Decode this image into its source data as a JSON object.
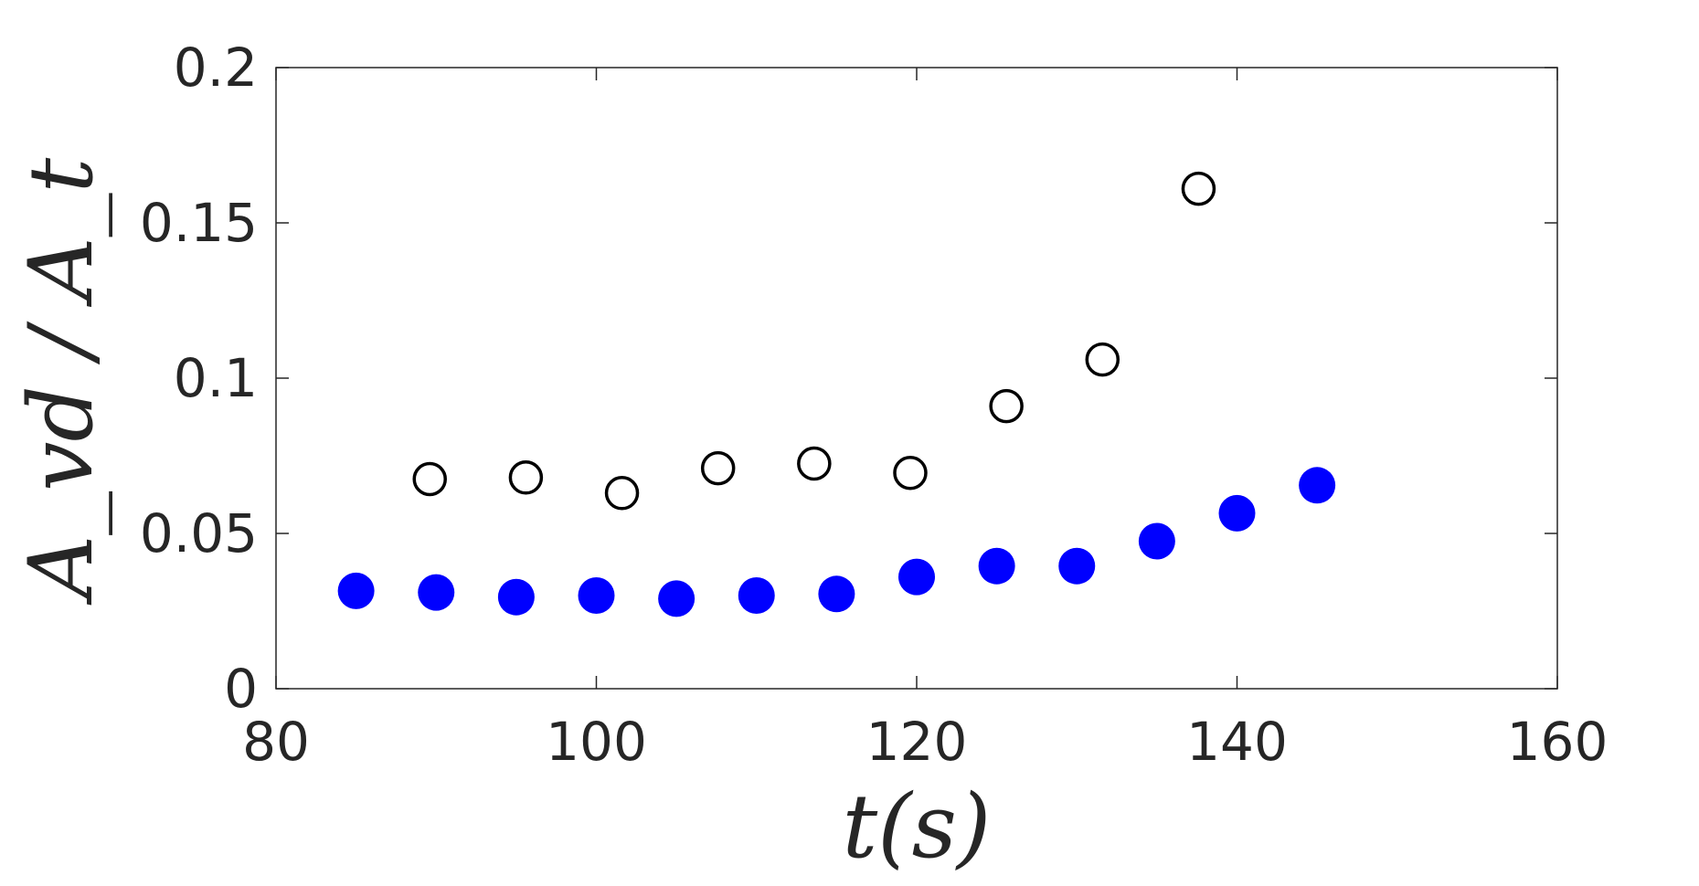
{
  "chart_data": {
    "type": "scatter",
    "title": "",
    "xlabel": "t(s)",
    "ylabel": "A_vd / A_t",
    "xlim": [
      80,
      160
    ],
    "ylim": [
      0,
      0.2
    ],
    "xticks": [
      80,
      100,
      120,
      140,
      160
    ],
    "xtick_labels": [
      "80",
      "100",
      "120",
      "140",
      "160"
    ],
    "yticks": [
      0,
      0.05,
      0.1,
      0.15,
      0.2
    ],
    "ytick_labels": [
      "0",
      "0.05",
      "0.1",
      "0.15",
      "0.2"
    ],
    "grid": false,
    "legend": "none",
    "series": [
      {
        "marker": "open-circle",
        "color": "#000000",
        "x": [
          89.6,
          95.6,
          101.6,
          107.6,
          113.6,
          119.6,
          125.6,
          131.6,
          137.6
        ],
        "y": [
          0.0675,
          0.068,
          0.063,
          0.071,
          0.0725,
          0.0695,
          0.091,
          0.106,
          0.161
        ]
      },
      {
        "marker": "filled-circle",
        "color": "#0000ff",
        "x": [
          85,
          90,
          95,
          100,
          105,
          110,
          115,
          120,
          125,
          130,
          135,
          140,
          145
        ],
        "y": [
          0.0315,
          0.031,
          0.0295,
          0.03,
          0.029,
          0.03,
          0.0305,
          0.036,
          0.0395,
          0.0395,
          0.0475,
          0.0565,
          0.0655
        ]
      }
    ]
  }
}
